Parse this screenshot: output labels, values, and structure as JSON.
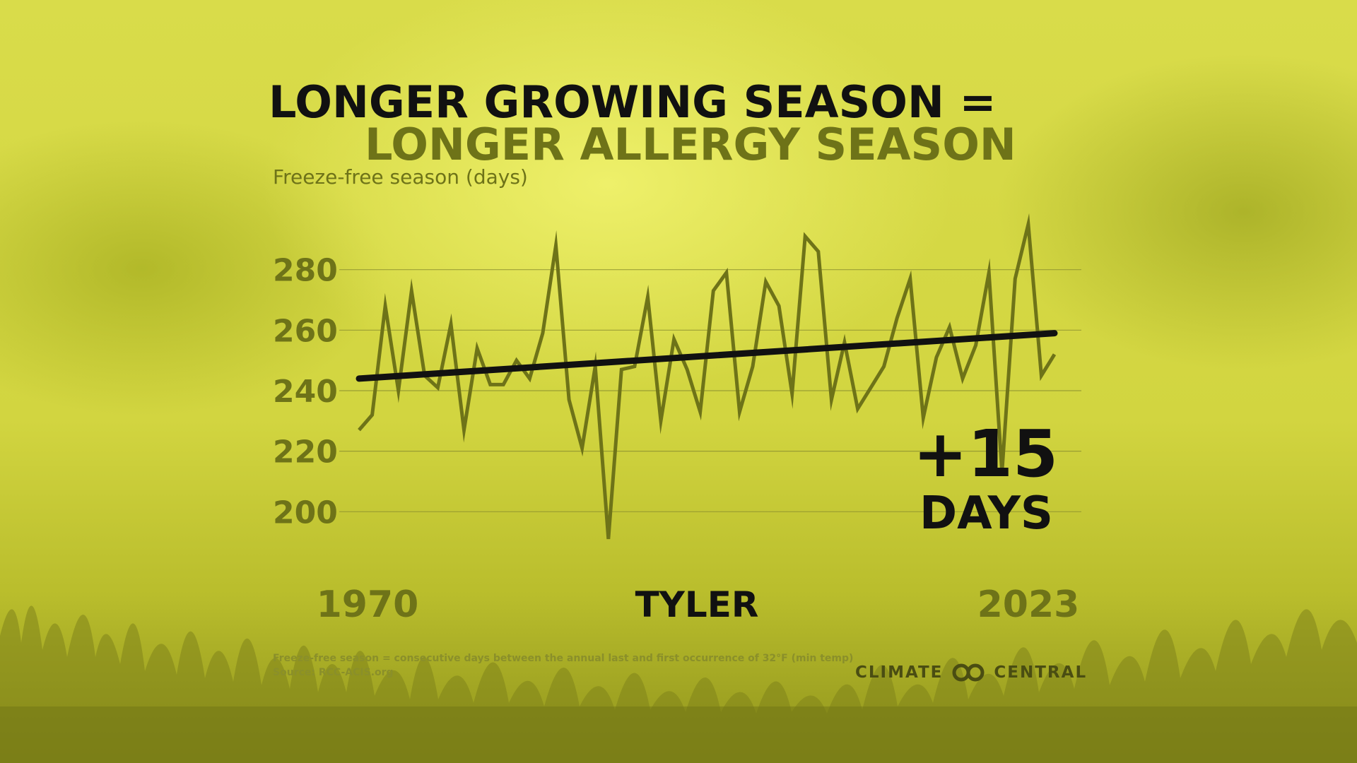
{
  "title": {
    "line1": "LONGER GROWING SEASON =",
    "line2": "LONGER ALLERGY SEASON"
  },
  "axis_label": "Freeze-free season (days)",
  "callout": {
    "value": "+15",
    "unit": "DAYS"
  },
  "footnote": {
    "definition": "Freeze-free season = consecutive days between the annual last and first occurrence of 32°F (min temp)",
    "source": "Source: RCC-ACIS.org"
  },
  "brand": {
    "left": "CLIMATE",
    "right": "CENTRAL",
    "logo_icon": "linked-circles-icon"
  },
  "colors": {
    "series": "#6e7318",
    "trend": "#111111",
    "accent": "#6e7318"
  },
  "chart_data": {
    "type": "line",
    "title": "LONGER GROWING SEASON = LONGER ALLERGY SEASON",
    "ylabel": "Freeze-free season (days)",
    "xlabel": "TYLER",
    "x_tick_labels": [
      "1970",
      "2023"
    ],
    "y_ticks": [
      200,
      220,
      240,
      260,
      280
    ],
    "ylim": [
      187,
      300
    ],
    "xlim": [
      1970,
      2023
    ],
    "grid": "horizontal",
    "x": [
      1970,
      1971,
      1972,
      1973,
      1974,
      1975,
      1976,
      1977,
      1978,
      1979,
      1980,
      1981,
      1982,
      1983,
      1984,
      1985,
      1986,
      1987,
      1988,
      1989,
      1990,
      1991,
      1992,
      1993,
      1994,
      1995,
      1996,
      1997,
      1998,
      1999,
      2000,
      2001,
      2002,
      2003,
      2004,
      2005,
      2006,
      2007,
      2008,
      2009,
      2010,
      2011,
      2012,
      2013,
      2014,
      2015,
      2016,
      2017,
      2018,
      2019,
      2020,
      2021,
      2022,
      2023
    ],
    "series": [
      {
        "values": [
          227,
          232,
          268,
          240,
          273,
          245,
          241,
          262,
          227,
          254,
          242,
          242,
          250,
          244,
          259,
          288,
          237,
          221,
          248,
          191,
          247,
          248,
          271,
          230,
          257,
          247,
          233,
          273,
          279,
          233,
          248,
          276,
          268,
          239,
          291,
          286,
          237,
          256,
          234,
          241,
          248,
          264,
          277,
          231,
          251,
          261,
          244,
          255,
          279,
          213,
          277,
          295,
          245,
          252
        ]
      },
      {
        "trend_start": 244,
        "trend_end": 259
      }
    ]
  }
}
